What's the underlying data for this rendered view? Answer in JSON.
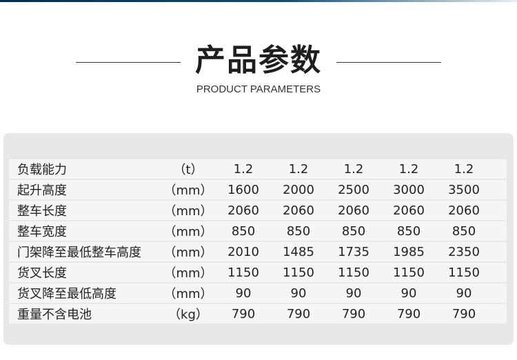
{
  "header": {
    "title": "产品参数",
    "subtitle": "PRODUCT PARAMETERS"
  },
  "table": {
    "rows": [
      {
        "name": "负载能力",
        "unit": "（t）",
        "values": [
          "1.2",
          "1.2",
          "1.2",
          "1.2",
          "1.2"
        ]
      },
      {
        "name": "起升高度",
        "unit": "（mm）",
        "values": [
          "1600",
          "2000",
          "2500",
          "3000",
          "3500"
        ]
      },
      {
        "name": "整车长度",
        "unit": "（mm）",
        "values": [
          "2060",
          "2060",
          "2060",
          "2060",
          "2060"
        ]
      },
      {
        "name": "整车宽度",
        "unit": "（mm）",
        "values": [
          "850",
          "850",
          "850",
          "850",
          "850"
        ]
      },
      {
        "name": "门架降至最低整车高度",
        "unit": "（mm）",
        "values": [
          "2010",
          "1485",
          "1735",
          "1985",
          "2350"
        ]
      },
      {
        "name": "货叉长度",
        "unit": "（mm）",
        "values": [
          "1150",
          "1150",
          "1150",
          "1150",
          "1150"
        ]
      },
      {
        "name": "货叉降至最低高度",
        "unit": "（mm）",
        "values": [
          "90",
          "90",
          "90",
          "90",
          "90"
        ]
      },
      {
        "name": "重量不含电池",
        "unit": "（kg）",
        "values": [
          "790",
          "790",
          "790",
          "790",
          "790"
        ]
      }
    ]
  }
}
